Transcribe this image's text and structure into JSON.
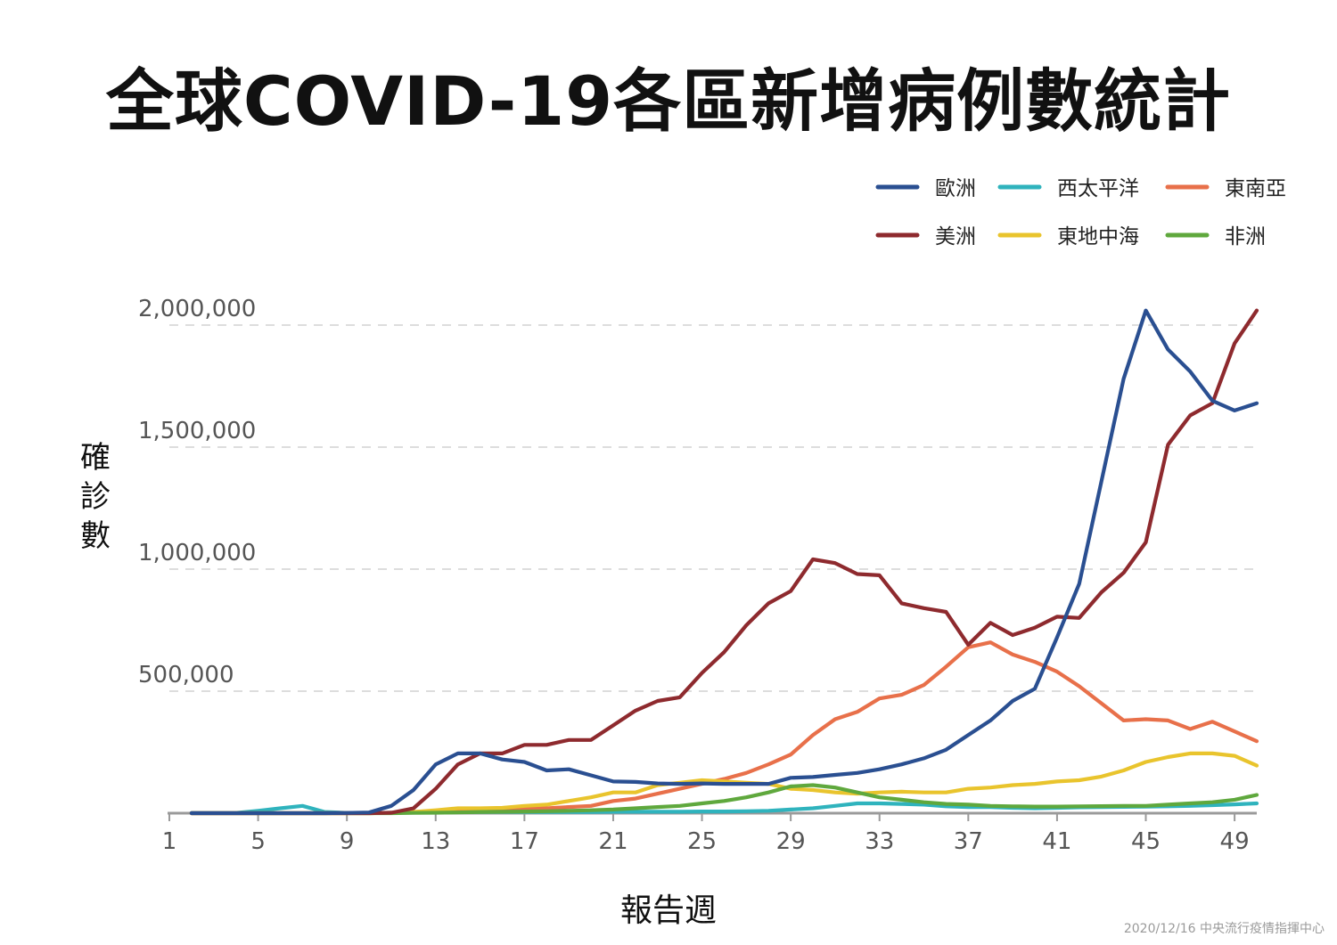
{
  "title": "全球COVID-19各區新增病例數統計",
  "footnote": "2020/12/16 中央流行疫情指揮中心",
  "chart_data": {
    "type": "line",
    "title": "全球COVID-19各區新增病例數統計",
    "xlabel": "報告週",
    "ylabel": "確診數",
    "xlim": [
      1,
      50
    ],
    "ylim": [
      0,
      2000000
    ],
    "x_ticks": [
      1,
      5,
      9,
      13,
      17,
      21,
      25,
      29,
      33,
      37,
      41,
      45,
      49
    ],
    "x_tick_labels": [
      "1",
      "5",
      "9",
      "13",
      "17",
      "21",
      "25",
      "29",
      "33",
      "37",
      "41",
      "45",
      "49"
    ],
    "y_ticks": [
      500000,
      1000000,
      1500000,
      2000000
    ],
    "y_tick_labels": [
      "500,000",
      "1,000,000",
      "1,500,000",
      "2,000,000"
    ],
    "grid": "horizontal dashed",
    "legend_position": "top-right",
    "x": [
      2,
      3,
      4,
      5,
      6,
      7,
      8,
      9,
      10,
      11,
      12,
      13,
      14,
      15,
      16,
      17,
      18,
      19,
      20,
      21,
      22,
      23,
      24,
      25,
      26,
      27,
      28,
      29,
      30,
      31,
      32,
      33,
      34,
      35,
      36,
      37,
      38,
      39,
      40,
      41,
      42,
      43,
      44,
      45,
      46,
      47,
      48,
      49,
      50
    ],
    "series": [
      {
        "name": "歐洲",
        "color": "#2a4f91",
        "values": [
          0,
          0,
          0,
          0,
          0,
          0,
          0,
          1000,
          3000,
          30000,
          95000,
          200000,
          245000,
          245000,
          220000,
          210000,
          175000,
          180000,
          155000,
          130000,
          128000,
          122000,
          120000,
          122000,
          120000,
          120000,
          120000,
          145000,
          148000,
          157000,
          165000,
          180000,
          200000,
          225000,
          260000,
          320000,
          380000,
          460000,
          510000,
          720000,
          940000,
          1360000,
          1780000,
          2060000,
          1900000,
          1810000,
          1690000,
          1650000,
          1680000
        ]
      },
      {
        "name": "西太平洋",
        "color": "#2fb3bd",
        "values": [
          1000,
          1000,
          1000,
          10000,
          20000,
          30000,
          5000,
          1000,
          1000,
          2000,
          3000,
          4000,
          5000,
          5000,
          5000,
          5000,
          5000,
          5000,
          5000,
          6000,
          6000,
          6000,
          6000,
          7000,
          7000,
          8000,
          10000,
          15000,
          20000,
          30000,
          40000,
          40000,
          38000,
          35000,
          28000,
          25000,
          25000,
          22000,
          20000,
          22000,
          24000,
          25000,
          26000,
          27000,
          28000,
          30000,
          33000,
          36000,
          40000
        ]
      },
      {
        "name": "東南亞",
        "color": "#e8704a",
        "values": [
          0,
          0,
          0,
          0,
          0,
          0,
          0,
          0,
          0,
          2000,
          5000,
          8000,
          10000,
          12000,
          15000,
          18000,
          20000,
          25000,
          30000,
          50000,
          60000,
          80000,
          100000,
          120000,
          140000,
          165000,
          200000,
          240000,
          320000,
          385000,
          415000,
          470000,
          485000,
          525000,
          600000,
          680000,
          700000,
          650000,
          620000,
          580000,
          520000,
          450000,
          380000,
          385000,
          380000,
          345000,
          375000,
          335000,
          295000
        ]
      },
      {
        "name": "美洲",
        "color": "#8e2a2e",
        "values": [
          0,
          0,
          0,
          0,
          0,
          0,
          0,
          0,
          0,
          2000,
          20000,
          100000,
          200000,
          245000,
          245000,
          280000,
          280000,
          300000,
          300000,
          360000,
          420000,
          460000,
          475000,
          575000,
          660000,
          770000,
          860000,
          910000,
          1040000,
          1025000,
          980000,
          975000,
          860000,
          840000,
          825000,
          690000,
          780000,
          730000,
          760000,
          805000,
          800000,
          905000,
          985000,
          1110000,
          1510000,
          1630000,
          1680000,
          1925000,
          2060000
        ]
      },
      {
        "name": "東地中海",
        "color": "#e9c42d",
        "values": [
          0,
          0,
          0,
          0,
          0,
          0,
          0,
          0,
          0,
          1000,
          5000,
          12000,
          20000,
          20000,
          22000,
          30000,
          35000,
          50000,
          65000,
          85000,
          85000,
          115000,
          125000,
          135000,
          130000,
          125000,
          120000,
          100000,
          95000,
          85000,
          80000,
          85000,
          88000,
          85000,
          85000,
          100000,
          105000,
          115000,
          120000,
          130000,
          135000,
          150000,
          175000,
          210000,
          230000,
          245000,
          245000,
          235000,
          195000
        ]
      },
      {
        "name": "非洲",
        "color": "#5fa83d",
        "values": [
          0,
          0,
          0,
          0,
          0,
          0,
          0,
          0,
          0,
          0,
          1000,
          2000,
          3000,
          5000,
          6000,
          7000,
          8000,
          10000,
          12000,
          15000,
          20000,
          25000,
          30000,
          40000,
          50000,
          65000,
          85000,
          110000,
          115000,
          105000,
          85000,
          65000,
          55000,
          45000,
          38000,
          35000,
          30000,
          28000,
          27000,
          27000,
          28000,
          29000,
          30000,
          30000,
          35000,
          40000,
          45000,
          55000,
          75000
        ]
      }
    ]
  }
}
